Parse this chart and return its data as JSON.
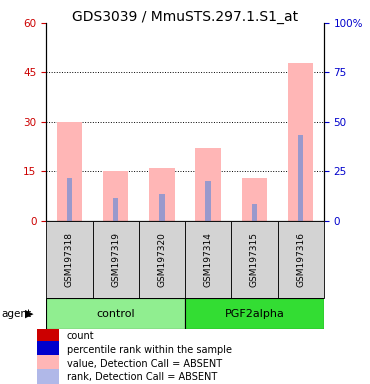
{
  "title": "GDS3039 / MmuSTS.297.1.S1_at",
  "samples": [
    "GSM197318",
    "GSM197319",
    "GSM197320",
    "GSM197314",
    "GSM197315",
    "GSM197316"
  ],
  "groups": [
    "control",
    "control",
    "control",
    "PGF2alpha",
    "PGF2alpha",
    "PGF2alpha"
  ],
  "group_labels": [
    "control",
    "PGF2alpha"
  ],
  "ctrl_color": "#90ee90",
  "pgf_color": "#33dd33",
  "pink_values": [
    30.0,
    15.0,
    16.0,
    22.0,
    13.0,
    48.0
  ],
  "blue_values": [
    13.0,
    7.0,
    8.0,
    12.0,
    5.0,
    26.0
  ],
  "ylim_left": [
    0,
    60
  ],
  "ylim_right": [
    0,
    100
  ],
  "yticks_left": [
    0,
    15,
    30,
    45,
    60
  ],
  "ytick_labels_left": [
    "0",
    "15",
    "30",
    "45",
    "60"
  ],
  "yticks_right": [
    0,
    25,
    50,
    75,
    100
  ],
  "ytick_labels_right": [
    "0",
    "25",
    "50",
    "75",
    "100%"
  ],
  "hlines": [
    15,
    30,
    45
  ],
  "legend_items": [
    {
      "label": "count",
      "color": "#cc0000"
    },
    {
      "label": "percentile rank within the sample",
      "color": "#0000cc"
    },
    {
      "label": "value, Detection Call = ABSENT",
      "color": "#ffb6b6"
    },
    {
      "label": "rank, Detection Call = ABSENT",
      "color": "#b0b8e8"
    }
  ],
  "pink_color": "#ffb6b6",
  "blue_color": "#9999cc",
  "title_fontsize": 10,
  "tick_fontsize": 7.5,
  "sample_fontsize": 6.5,
  "group_fontsize": 8,
  "legend_fontsize": 7,
  "left_tick_color": "#cc0000",
  "right_tick_color": "#0000cc",
  "sample_box_color": "#d3d3d3"
}
